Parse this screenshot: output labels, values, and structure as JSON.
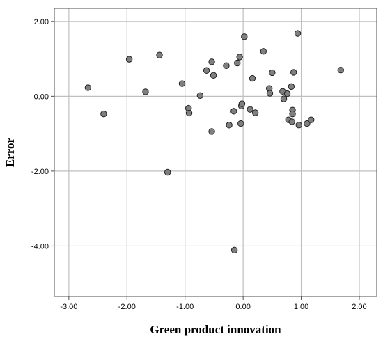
{
  "chart_data": {
    "type": "scatter",
    "title": "",
    "xlabel": "Green product innovation",
    "ylabel": "Error",
    "xlim": [
      -3.25,
      2.3
    ],
    "ylim": [
      -5.35,
      2.35
    ],
    "x_ticks": [
      -3.0,
      -2.0,
      -1.0,
      0.0,
      1.0,
      2.0
    ],
    "x_tick_labels": [
      "-3.00",
      "-2.00",
      "-1.00",
      "0.00",
      "1.00",
      "2.00"
    ],
    "y_ticks": [
      2.0,
      0.0,
      -2.0,
      -4.0
    ],
    "y_tick_labels": [
      "2.00",
      "0.00",
      "-2.00",
      "-4.00"
    ],
    "grid": true,
    "marker_color": "#7f7f7f",
    "marker_edge_color": "#222222",
    "grid_color": "#bfbfbf",
    "series": [
      {
        "points": [
          {
            "x": -2.67,
            "y": 0.23
          },
          {
            "x": -2.4,
            "y": -0.47
          },
          {
            "x": -1.96,
            "y": 0.99
          },
          {
            "x": -1.68,
            "y": 0.12
          },
          {
            "x": -1.44,
            "y": 1.1
          },
          {
            "x": -1.3,
            "y": -2.03
          },
          {
            "x": -1.05,
            "y": 0.34
          },
          {
            "x": -0.94,
            "y": -0.32
          },
          {
            "x": -0.93,
            "y": -0.45
          },
          {
            "x": -0.74,
            "y": 0.02
          },
          {
            "x": -0.63,
            "y": 0.69
          },
          {
            "x": -0.54,
            "y": 0.92
          },
          {
            "x": -0.54,
            "y": -0.94
          },
          {
            "x": -0.51,
            "y": 0.56
          },
          {
            "x": -0.29,
            "y": 0.82
          },
          {
            "x": -0.24,
            "y": -0.77
          },
          {
            "x": -0.16,
            "y": -0.4
          },
          {
            "x": -0.15,
            "y": -4.11
          },
          {
            "x": -0.1,
            "y": 0.89
          },
          {
            "x": -0.06,
            "y": 1.05
          },
          {
            "x": -0.04,
            "y": -0.73
          },
          {
            "x": -0.03,
            "y": -0.26
          },
          {
            "x": -0.02,
            "y": -0.2
          },
          {
            "x": 0.02,
            "y": 1.59
          },
          {
            "x": 0.12,
            "y": -0.35
          },
          {
            "x": 0.16,
            "y": 0.48
          },
          {
            "x": 0.21,
            "y": -0.44
          },
          {
            "x": 0.35,
            "y": 1.2
          },
          {
            "x": 0.45,
            "y": 0.21
          },
          {
            "x": 0.46,
            "y": 0.08
          },
          {
            "x": 0.5,
            "y": 0.63
          },
          {
            "x": 0.68,
            "y": 0.13
          },
          {
            "x": 0.7,
            "y": -0.07
          },
          {
            "x": 0.76,
            "y": 0.07
          },
          {
            "x": 0.78,
            "y": -0.63
          },
          {
            "x": 0.83,
            "y": 0.26
          },
          {
            "x": 0.84,
            "y": -0.68
          },
          {
            "x": 0.85,
            "y": -0.37
          },
          {
            "x": 0.85,
            "y": -0.47
          },
          {
            "x": 0.87,
            "y": 0.64
          },
          {
            "x": 0.94,
            "y": 1.68
          },
          {
            "x": 0.96,
            "y": -0.77
          },
          {
            "x": 1.1,
            "y": -0.73
          },
          {
            "x": 1.17,
            "y": -0.63
          },
          {
            "x": 1.68,
            "y": 0.7
          }
        ]
      }
    ]
  }
}
